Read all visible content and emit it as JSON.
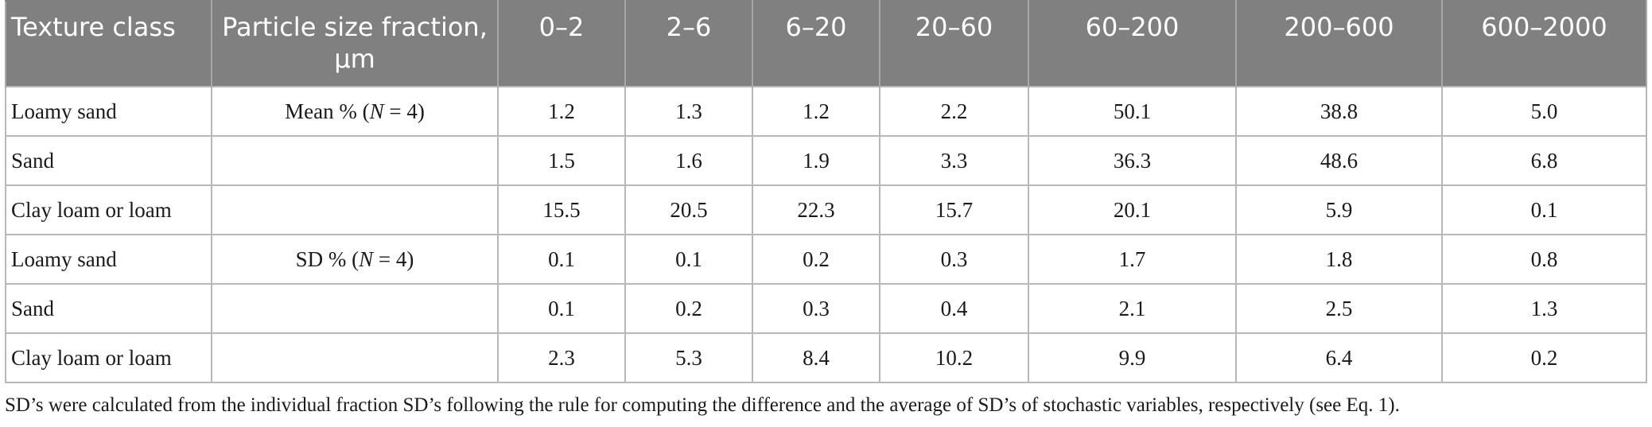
{
  "table": {
    "headers": [
      "Texture class",
      "Particle size fraction, μm",
      "0–2",
      "2–6",
      "6–20",
      "20–60",
      "60–200",
      "200–600",
      "600–2000"
    ],
    "rows": [
      {
        "texture": "Loamy sand",
        "stat_prefix": "Mean % (",
        "stat_n": "N",
        "stat_suffix": " = 4)",
        "values": [
          "1.2",
          "1.3",
          "1.2",
          "2.2",
          "50.1",
          "38.8",
          "5.0"
        ]
      },
      {
        "texture": "Sand",
        "stat_prefix": "",
        "stat_n": "",
        "stat_suffix": "",
        "values": [
          "1.5",
          "1.6",
          "1.9",
          "3.3",
          "36.3",
          "48.6",
          "6.8"
        ]
      },
      {
        "texture": "Clay loam or loam",
        "stat_prefix": "",
        "stat_n": "",
        "stat_suffix": "",
        "values": [
          "15.5",
          "20.5",
          "22.3",
          "15.7",
          "20.1",
          "5.9",
          "0.1"
        ]
      },
      {
        "texture": "Loamy sand",
        "stat_prefix": "SD % (",
        "stat_n": "N",
        "stat_suffix": " = 4)",
        "values": [
          "0.1",
          "0.1",
          "0.2",
          "0.3",
          "1.7",
          "1.8",
          "0.8"
        ]
      },
      {
        "texture": "Sand",
        "stat_prefix": "",
        "stat_n": "",
        "stat_suffix": "",
        "values": [
          "0.1",
          "0.2",
          "0.3",
          "0.4",
          "2.1",
          "2.5",
          "1.3"
        ]
      },
      {
        "texture": "Clay loam or loam",
        "stat_prefix": "",
        "stat_n": "",
        "stat_suffix": "",
        "values": [
          "2.3",
          "5.3",
          "8.4",
          "10.2",
          "9.9",
          "6.4",
          "0.2"
        ]
      }
    ]
  },
  "footnote": "SD’s were calculated from the individual fraction SD’s following the rule for computing the difference and the average of SD’s of stochastic variables, respectively (see Eq. 1).",
  "colors": {
    "header_bg": "#808080",
    "header_text": "#ffffff",
    "grid": "#b8b8b8"
  }
}
